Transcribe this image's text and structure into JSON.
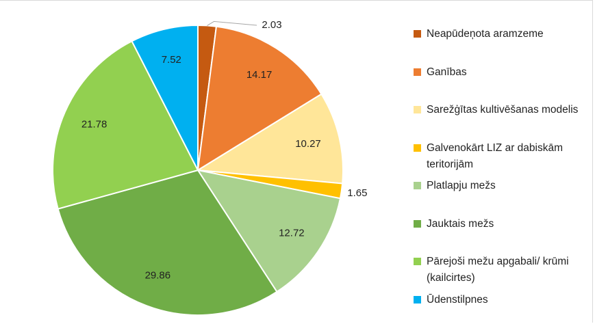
{
  "chart_data": {
    "type": "pie",
    "categories": [
      "Neapūdeņota aramzeme",
      "Ganības",
      "Sarežģītas kultivēšanas modelis",
      "Galvenokārt LIZ ar dabiskām teritorijām",
      "Platlapju mežs",
      "Jauktais mežs",
      "Pārejoši mežu apgabali/ krūmi (kailcirtes)",
      "Ūdenstilpnes"
    ],
    "values": [
      2.03,
      14.17,
      10.27,
      1.65,
      12.72,
      29.86,
      21.78,
      7.52
    ],
    "colors": [
      "#c55a11",
      "#ed7d31",
      "#ffe699",
      "#ffc000",
      "#a9d18e",
      "#70ad47",
      "#92d050",
      "#00b0f0"
    ],
    "legend": "right"
  }
}
